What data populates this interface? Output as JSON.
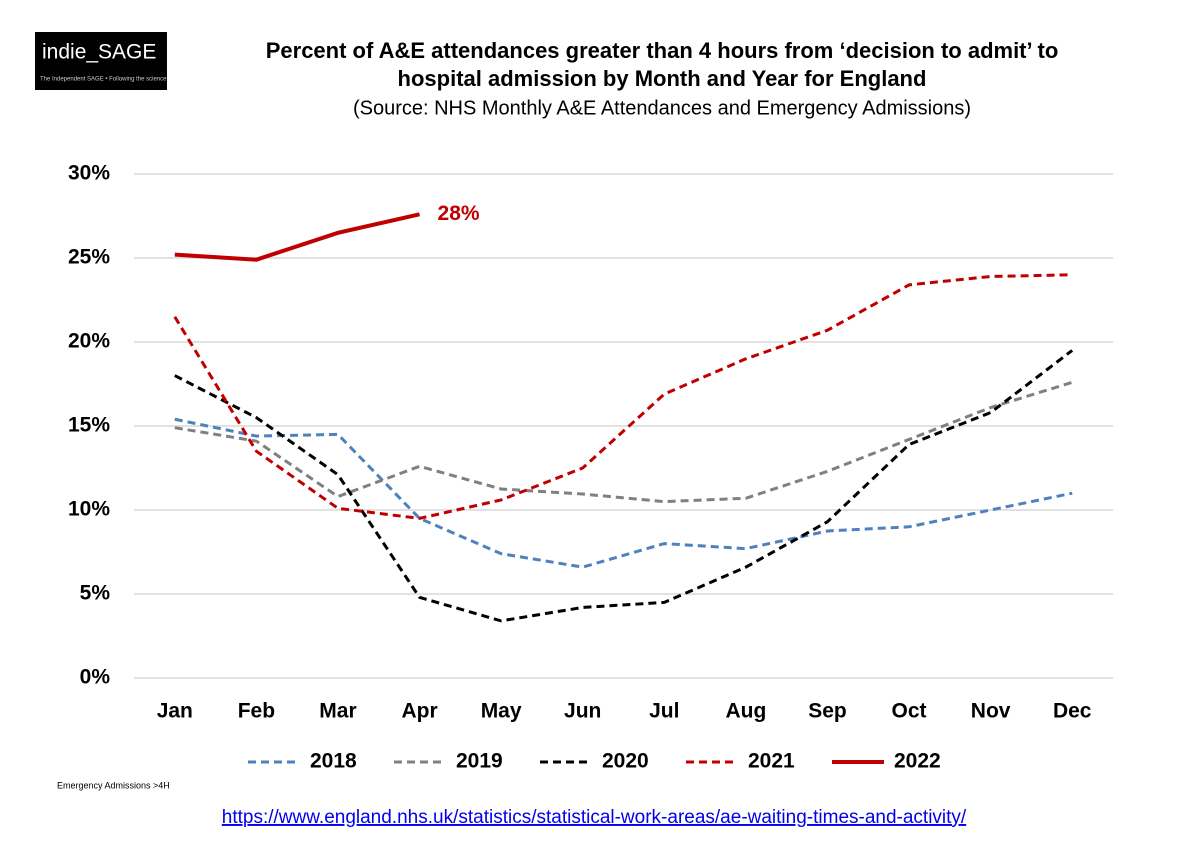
{
  "chart_data": {
    "type": "line",
    "logo": "indie_SAGE",
    "logo_tagline": "The Independent SAGE • Following the science",
    "title": [
      "Percent of A&E attendances greater than 4 hours from ‘decision to admit’ to",
      "hospital admission by Month and Year for England"
    ],
    "subtitle": "(Source: NHS Monthly A&E Attendances and Emergency Admissions)",
    "categories": [
      "Jan",
      "Feb",
      "Mar",
      "Apr",
      "May",
      "Jun",
      "Jul",
      "Aug",
      "Sep",
      "Oct",
      "Nov",
      "Dec"
    ],
    "series": [
      {
        "name": "2018",
        "color": "#4f81bd",
        "style": "dashed",
        "values": [
          15.4,
          14.4,
          14.5,
          9.5,
          7.4,
          6.6,
          8.0,
          7.7,
          8.75,
          9.0,
          10.0,
          11.0
        ]
      },
      {
        "name": "2019",
        "color": "#808080",
        "style": "dashed",
        "values": [
          14.9,
          14.1,
          10.8,
          12.6,
          11.25,
          10.95,
          10.5,
          10.7,
          12.3,
          14.2,
          16.1,
          17.6
        ]
      },
      {
        "name": "2020",
        "color": "#000000",
        "style": "dashed",
        "values": [
          18.0,
          15.5,
          12.1,
          4.8,
          3.4,
          4.2,
          4.5,
          6.6,
          9.3,
          13.9,
          15.8,
          19.5
        ]
      },
      {
        "name": "2021",
        "color": "#c00000",
        "style": "dashed",
        "values": [
          21.5,
          13.5,
          10.1,
          9.5,
          10.6,
          12.5,
          16.9,
          19.0,
          20.7,
          23.4,
          23.9,
          24.0
        ]
      },
      {
        "name": "2022",
        "color": "#c00000",
        "style": "solid",
        "values": [
          25.2,
          24.9,
          26.5,
          27.6,
          null,
          null,
          null,
          null,
          null,
          null,
          null,
          null
        ],
        "value_labels": [
          null,
          null,
          null,
          "28%",
          null,
          null,
          null,
          null,
          null,
          null,
          null,
          null
        ]
      }
    ],
    "ylim": [
      0,
      30
    ],
    "yticks": [
      {
        "value": 0,
        "label": "0%"
      },
      {
        "value": 5,
        "label": "5%"
      },
      {
        "value": 10,
        "label": "10%"
      },
      {
        "value": 15,
        "label": "15%"
      },
      {
        "value": 20,
        "label": "20%"
      },
      {
        "value": 25,
        "label": "25%"
      },
      {
        "value": 30,
        "label": "30%"
      }
    ],
    "grid": true,
    "legend": "bottom",
    "footnote": "Emergency Admissions >4H",
    "source_url": "https://www.england.nhs.uk/statistics/statistical-work-areas/ae-waiting-times-and-activity/"
  }
}
